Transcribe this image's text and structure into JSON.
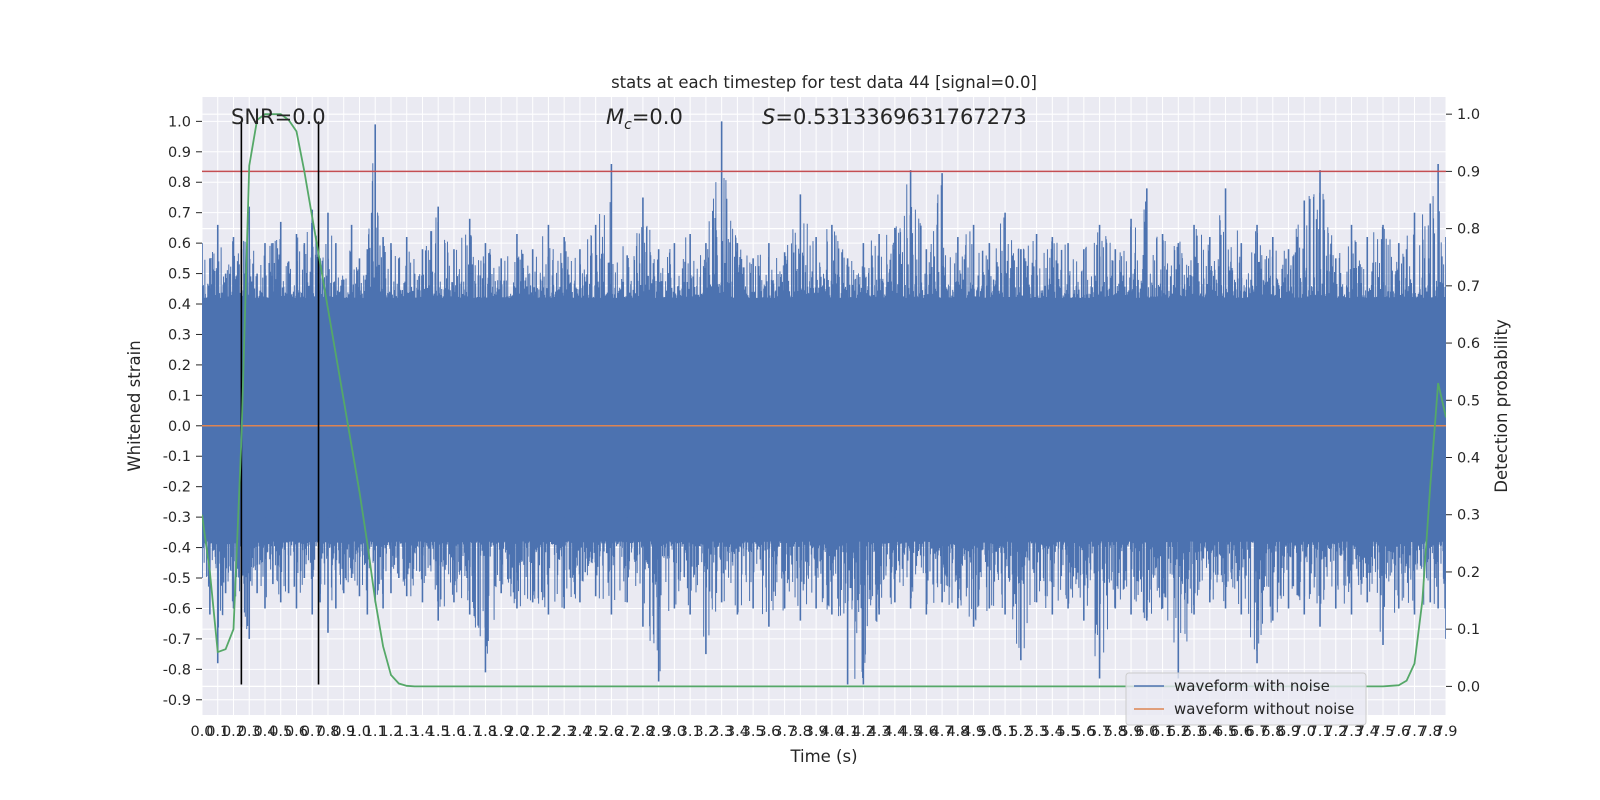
{
  "chart_data": {
    "type": "line",
    "title": "stats at each timestep for test data 44 [signal=0.0]",
    "xlabel": "Time (s)",
    "ylabel": "Whitened strain",
    "y2label": "Detection probability",
    "xlim": [
      0.0,
      7.9
    ],
    "ylim": [
      -0.95,
      1.08
    ],
    "y2lim": [
      -0.05,
      1.03
    ],
    "xticks": [
      "0.0",
      "0.1",
      "0.2",
      "0.3",
      "0.4",
      "0.5",
      "0.6",
      "0.7",
      "0.8",
      "0.9",
      "1.0",
      "1.1",
      "1.2",
      "1.3",
      "1.4",
      "1.5",
      "1.6",
      "1.7",
      "1.8",
      "1.9",
      "2.0",
      "2.1",
      "2.2",
      "2.3",
      "2.4",
      "2.5",
      "2.6",
      "2.7",
      "2.8",
      "2.9",
      "3.0",
      "3.1",
      "3.2",
      "3.3",
      "3.4",
      "3.5",
      "3.6",
      "3.7",
      "3.8",
      "3.9",
      "4.0",
      "4.1",
      "4.2",
      "4.3",
      "4.4",
      "4.5",
      "4.6",
      "4.7",
      "4.8",
      "4.9",
      "5.0",
      "5.1",
      "5.2",
      "5.3",
      "5.4",
      "5.5",
      "5.6",
      "5.7",
      "5.8",
      "5.9",
      "6.0",
      "6.1",
      "6.2",
      "6.3",
      "6.4",
      "6.5",
      "6.6",
      "6.7",
      "6.8",
      "6.9",
      "7.0",
      "7.1",
      "7.2",
      "7.3",
      "7.4",
      "7.5",
      "7.6",
      "7.7",
      "7.8",
      "7.9"
    ],
    "yticks": [
      "-0.9",
      "-0.8",
      "-0.7",
      "-0.6",
      "-0.5",
      "-0.4",
      "-0.3",
      "-0.2",
      "-0.1",
      "0.0",
      "0.1",
      "0.2",
      "0.3",
      "0.4",
      "0.5",
      "0.6",
      "0.7",
      "0.8",
      "0.9",
      "1.0"
    ],
    "y2ticks": [
      "0.0",
      "0.1",
      "0.2",
      "0.3",
      "0.4",
      "0.5",
      "0.6",
      "0.7",
      "0.8",
      "0.9",
      "1.0"
    ],
    "grid": true,
    "legend_position": "bottom-right",
    "series": [
      {
        "name": "waveform with noise",
        "color": "#4c72b0",
        "axis": "left",
        "sampled_extremes": {
          "positive_peaks_x": [
            0.0,
            0.05,
            0.1,
            0.15,
            0.2,
            0.25,
            0.3,
            0.35,
            0.4,
            0.45,
            0.5,
            0.55,
            0.6,
            0.65,
            0.7,
            0.75,
            0.8,
            0.85,
            0.9,
            0.95,
            1.0,
            1.05,
            1.1,
            1.15,
            1.2,
            1.25,
            1.3,
            1.4,
            1.5,
            1.6,
            1.7,
            1.8,
            1.9,
            2.0,
            2.1,
            2.2,
            2.3,
            2.4,
            2.5,
            2.6,
            2.7,
            2.8,
            2.9,
            3.0,
            3.1,
            3.2,
            3.3,
            3.4,
            3.5,
            3.6,
            3.7,
            3.8,
            3.9,
            4.0,
            4.1,
            4.2,
            4.3,
            4.4,
            4.5,
            4.6,
            4.7,
            4.8,
            4.9,
            5.0,
            5.1,
            5.2,
            5.3,
            5.4,
            5.5,
            5.6,
            5.7,
            5.8,
            5.9,
            6.0,
            6.1,
            6.2,
            6.3,
            6.4,
            6.5,
            6.6,
            6.7,
            6.8,
            6.9,
            7.0,
            7.1,
            7.2,
            7.3,
            7.4,
            7.5,
            7.6,
            7.7,
            7.8,
            7.85,
            7.9
          ],
          "positive_peaks_y": [
            0.6,
            0.55,
            0.66,
            0.5,
            0.62,
            0.58,
            0.72,
            0.5,
            0.6,
            0.6,
            0.67,
            0.54,
            0.63,
            0.6,
            0.71,
            0.55,
            0.7,
            0.6,
            0.48,
            0.66,
            0.55,
            0.58,
            0.99,
            0.62,
            0.6,
            0.55,
            0.62,
            0.58,
            0.72,
            0.58,
            0.68,
            0.6,
            0.55,
            0.63,
            0.58,
            0.66,
            0.62,
            0.58,
            0.66,
            0.86,
            0.56,
            0.75,
            0.58,
            0.6,
            0.63,
            0.6,
            1.0,
            0.6,
            0.55,
            0.6,
            0.57,
            0.76,
            0.62,
            0.66,
            0.55,
            0.6,
            0.63,
            0.65,
            0.84,
            0.58,
            0.83,
            0.62,
            0.66,
            0.6,
            0.7,
            0.58,
            0.63,
            0.62,
            0.6,
            0.58,
            0.66,
            0.58,
            0.68,
            0.78,
            0.63,
            0.6,
            0.66,
            0.62,
            0.78,
            0.6,
            0.66,
            0.62,
            0.58,
            0.74,
            0.84,
            0.55,
            0.66,
            0.62,
            0.66,
            0.6,
            0.7,
            0.73,
            0.86,
            0.62
          ],
          "negative_peaks_x": [
            0.0,
            0.05,
            0.1,
            0.15,
            0.2,
            0.25,
            0.3,
            0.35,
            0.4,
            0.45,
            0.5,
            0.55,
            0.6,
            0.65,
            0.7,
            0.75,
            0.8,
            0.85,
            0.9,
            0.95,
            1.0,
            1.05,
            1.1,
            1.15,
            1.2,
            1.25,
            1.3,
            1.4,
            1.5,
            1.6,
            1.7,
            1.8,
            1.9,
            2.0,
            2.1,
            2.2,
            2.3,
            2.4,
            2.5,
            2.6,
            2.7,
            2.8,
            2.9,
            3.0,
            3.1,
            3.2,
            3.3,
            3.4,
            3.5,
            3.6,
            3.7,
            3.8,
            3.9,
            4.0,
            4.1,
            4.2,
            4.3,
            4.4,
            4.5,
            4.6,
            4.7,
            4.8,
            4.9,
            5.0,
            5.1,
            5.2,
            5.3,
            5.4,
            5.5,
            5.6,
            5.7,
            5.8,
            5.9,
            6.0,
            6.1,
            6.2,
            6.3,
            6.4,
            6.5,
            6.6,
            6.7,
            6.8,
            6.9,
            7.0,
            7.1,
            7.2,
            7.3,
            7.4,
            7.5,
            7.6,
            7.7,
            7.8,
            7.85,
            7.9
          ],
          "negative_peaks_y": [
            -0.5,
            -0.62,
            -0.78,
            -0.55,
            -0.6,
            -0.66,
            -0.7,
            -0.55,
            -0.6,
            -0.52,
            -0.58,
            -0.55,
            -0.6,
            -0.5,
            -0.62,
            -0.58,
            -0.68,
            -0.6,
            -0.55,
            -0.5,
            -0.56,
            -0.62,
            -0.58,
            -0.6,
            -0.55,
            -0.5,
            -0.56,
            -0.58,
            -0.64,
            -0.58,
            -0.62,
            -0.81,
            -0.55,
            -0.6,
            -0.58,
            -0.62,
            -0.6,
            -0.58,
            -0.56,
            -0.62,
            -0.58,
            -0.66,
            -0.84,
            -0.6,
            -0.62,
            -0.75,
            -0.58,
            -0.62,
            -0.6,
            -0.66,
            -0.6,
            -0.64,
            -0.6,
            -0.62,
            -0.85,
            -0.85,
            -0.62,
            -0.58,
            -0.6,
            -0.62,
            -0.58,
            -0.6,
            -0.66,
            -0.6,
            -0.62,
            -0.77,
            -0.58,
            -0.62,
            -0.6,
            -0.64,
            -0.83,
            -0.6,
            -0.62,
            -0.64,
            -0.6,
            -0.83,
            -0.62,
            -0.58,
            -0.6,
            -0.62,
            -0.78,
            -0.64,
            -0.6,
            -0.62,
            -0.66,
            -0.6,
            -0.62,
            -0.58,
            -0.72,
            -0.6,
            -0.62,
            -0.58,
            -0.6,
            -0.7
          ]
        }
      },
      {
        "name": "waveform without noise",
        "color": "#dd8452",
        "axis": "left",
        "x": [
          0.0,
          7.9
        ],
        "y": [
          0.0,
          0.0
        ]
      },
      {
        "name": "",
        "color": "#55a868",
        "axis": "right",
        "x": [
          0.0,
          0.05,
          0.1,
          0.15,
          0.2,
          0.25,
          0.3,
          0.35,
          0.4,
          0.45,
          0.5,
          0.55,
          0.6,
          0.65,
          0.7,
          0.75,
          0.8,
          0.85,
          0.9,
          0.95,
          1.0,
          1.05,
          1.1,
          1.15,
          1.2,
          1.25,
          1.3,
          1.35,
          1.4,
          1.5,
          2.0,
          3.0,
          4.0,
          5.0,
          6.0,
          7.0,
          7.5,
          7.55,
          7.6,
          7.65,
          7.7,
          7.75,
          7.8,
          7.85,
          7.9
        ],
        "y": [
          0.3,
          0.2,
          0.06,
          0.065,
          0.1,
          0.43,
          0.91,
          0.99,
          1.0,
          1.0,
          1.0,
          0.99,
          0.97,
          0.9,
          0.82,
          0.74,
          0.66,
          0.58,
          0.5,
          0.42,
          0.34,
          0.25,
          0.15,
          0.07,
          0.02,
          0.005,
          0.001,
          0.0,
          0.0,
          0.0,
          0.0,
          0.0,
          0.0,
          0.0,
          0.0,
          0.0,
          0.0,
          0.001,
          0.002,
          0.01,
          0.04,
          0.15,
          0.35,
          0.53,
          0.47
        ]
      }
    ],
    "threshold_line": {
      "axis": "right",
      "y": 0.9,
      "color": "#c44e52"
    },
    "vertical_markers": {
      "x": [
        0.25,
        0.74
      ],
      "color": "#000000"
    },
    "annotations": {
      "snr": "SNR=0.0",
      "mc_symbol": "M",
      "mc_subscript": "c",
      "mc_value": "=0.0",
      "s_symbol": "S",
      "s_value": "=0.5313369631767273"
    }
  }
}
